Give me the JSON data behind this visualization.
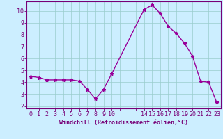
{
  "x": [
    0,
    1,
    2,
    3,
    4,
    5,
    6,
    7,
    8,
    9,
    10,
    14,
    15,
    16,
    17,
    18,
    19,
    20,
    21,
    22,
    23
  ],
  "y": [
    4.5,
    4.4,
    4.2,
    4.2,
    4.2,
    4.2,
    4.1,
    3.4,
    2.6,
    3.4,
    4.7,
    10.1,
    10.5,
    9.8,
    8.7,
    8.1,
    7.3,
    6.2,
    4.1,
    4.0,
    2.3
  ],
  "line_color": "#990099",
  "marker": "*",
  "marker_size": 3.5,
  "bg_color": "#cceeff",
  "grid_color": "#99cccc",
  "xlabel": "Windchill (Refroidissement éolien,°C)",
  "xlim": [
    -0.5,
    23.5
  ],
  "ylim": [
    1.8,
    10.8
  ],
  "xtick_positions": [
    0,
    1,
    2,
    3,
    4,
    5,
    6,
    7,
    8,
    9,
    10,
    11,
    12,
    13,
    14,
    15,
    16,
    17,
    18,
    19,
    20,
    21,
    22,
    23
  ],
  "xtick_labels": [
    "0",
    "1",
    "2",
    "3",
    "4",
    "5",
    "6",
    "7",
    "8",
    "9",
    "10",
    "",
    "",
    "",
    "14",
    "15",
    "16",
    "17",
    "18",
    "19",
    "20",
    "21",
    "22",
    "23"
  ],
  "ytick_positions": [
    2,
    3,
    4,
    5,
    6,
    7,
    8,
    9,
    10
  ],
  "ytick_labels": [
    "2",
    "3",
    "4",
    "5",
    "6",
    "7",
    "8",
    "9",
    "10"
  ],
  "axis_color": "#770077",
  "label_fontsize": 6,
  "tick_fontsize": 6,
  "linewidth": 1.0
}
